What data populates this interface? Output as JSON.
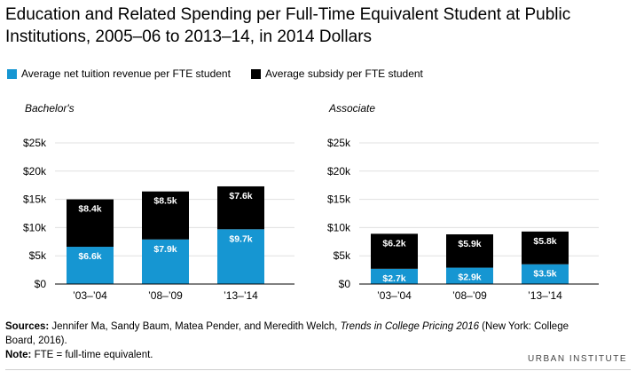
{
  "title": "Education and Related Spending per Full-Time Equivalent Student at Public Institutions, 2005–06 to 2013–14, in 2014 Dollars",
  "colors": {
    "tuition": "#1696d2",
    "subsidy": "#000000",
    "grid": "#e0e0e0",
    "axis": "#000000"
  },
  "legend": [
    {
      "label": "Average net tuition revenue per FTE student",
      "color": "#1696d2"
    },
    {
      "label": "Average subsidy per FTE student",
      "color": "#000000"
    }
  ],
  "chart_data": [
    {
      "type": "bar",
      "stacked": true,
      "panel_title": "Bachelor's",
      "categories": [
        "’03–’04",
        "’08–’09",
        "’13–’14"
      ],
      "series": [
        {
          "name": "Average net tuition revenue per FTE student",
          "values": [
            6.6,
            7.9,
            9.7
          ],
          "labels": [
            "$6.6k",
            "$7.9k",
            "$9.7k"
          ]
        },
        {
          "name": "Average subsidy per FTE student",
          "values": [
            8.4,
            8.5,
            7.6
          ],
          "labels": [
            "$8.4k",
            "$8.5k",
            "$7.6k"
          ]
        }
      ],
      "ylim": [
        0,
        25
      ],
      "yticks": [
        "$0",
        "$5k",
        "$10k",
        "$15k",
        "$20k",
        "$25k"
      ],
      "grid": true
    },
    {
      "type": "bar",
      "stacked": true,
      "panel_title": "Associate",
      "categories": [
        "’03–’04",
        "’08–’09",
        "’13–’14"
      ],
      "series": [
        {
          "name": "Average net tuition revenue per FTE student",
          "values": [
            2.7,
            2.9,
            3.5
          ],
          "labels": [
            "$2.7k",
            "$2.9k",
            "$3.5k"
          ]
        },
        {
          "name": "Average subsidy per FTE student",
          "values": [
            6.2,
            5.9,
            5.8
          ],
          "labels": [
            "$6.2k",
            "$5.9k",
            "$5.8k"
          ]
        }
      ],
      "ylim": [
        0,
        25
      ],
      "yticks": [
        "$0",
        "$5k",
        "$10k",
        "$15k",
        "$20k",
        "$25k"
      ],
      "grid": true
    }
  ],
  "footer": {
    "sources_label": "Sources:",
    "sources_pre": " Jennifer Ma, Sandy Baum, Matea Pender, and Meredith Welch, ",
    "sources_title": "Trends in College Pricing 2016",
    "sources_post": " (New York: College Board, 2016).",
    "note_label": "Note:",
    "note_text": " FTE = full-time equivalent."
  },
  "brand": "URBAN INSTITUTE"
}
